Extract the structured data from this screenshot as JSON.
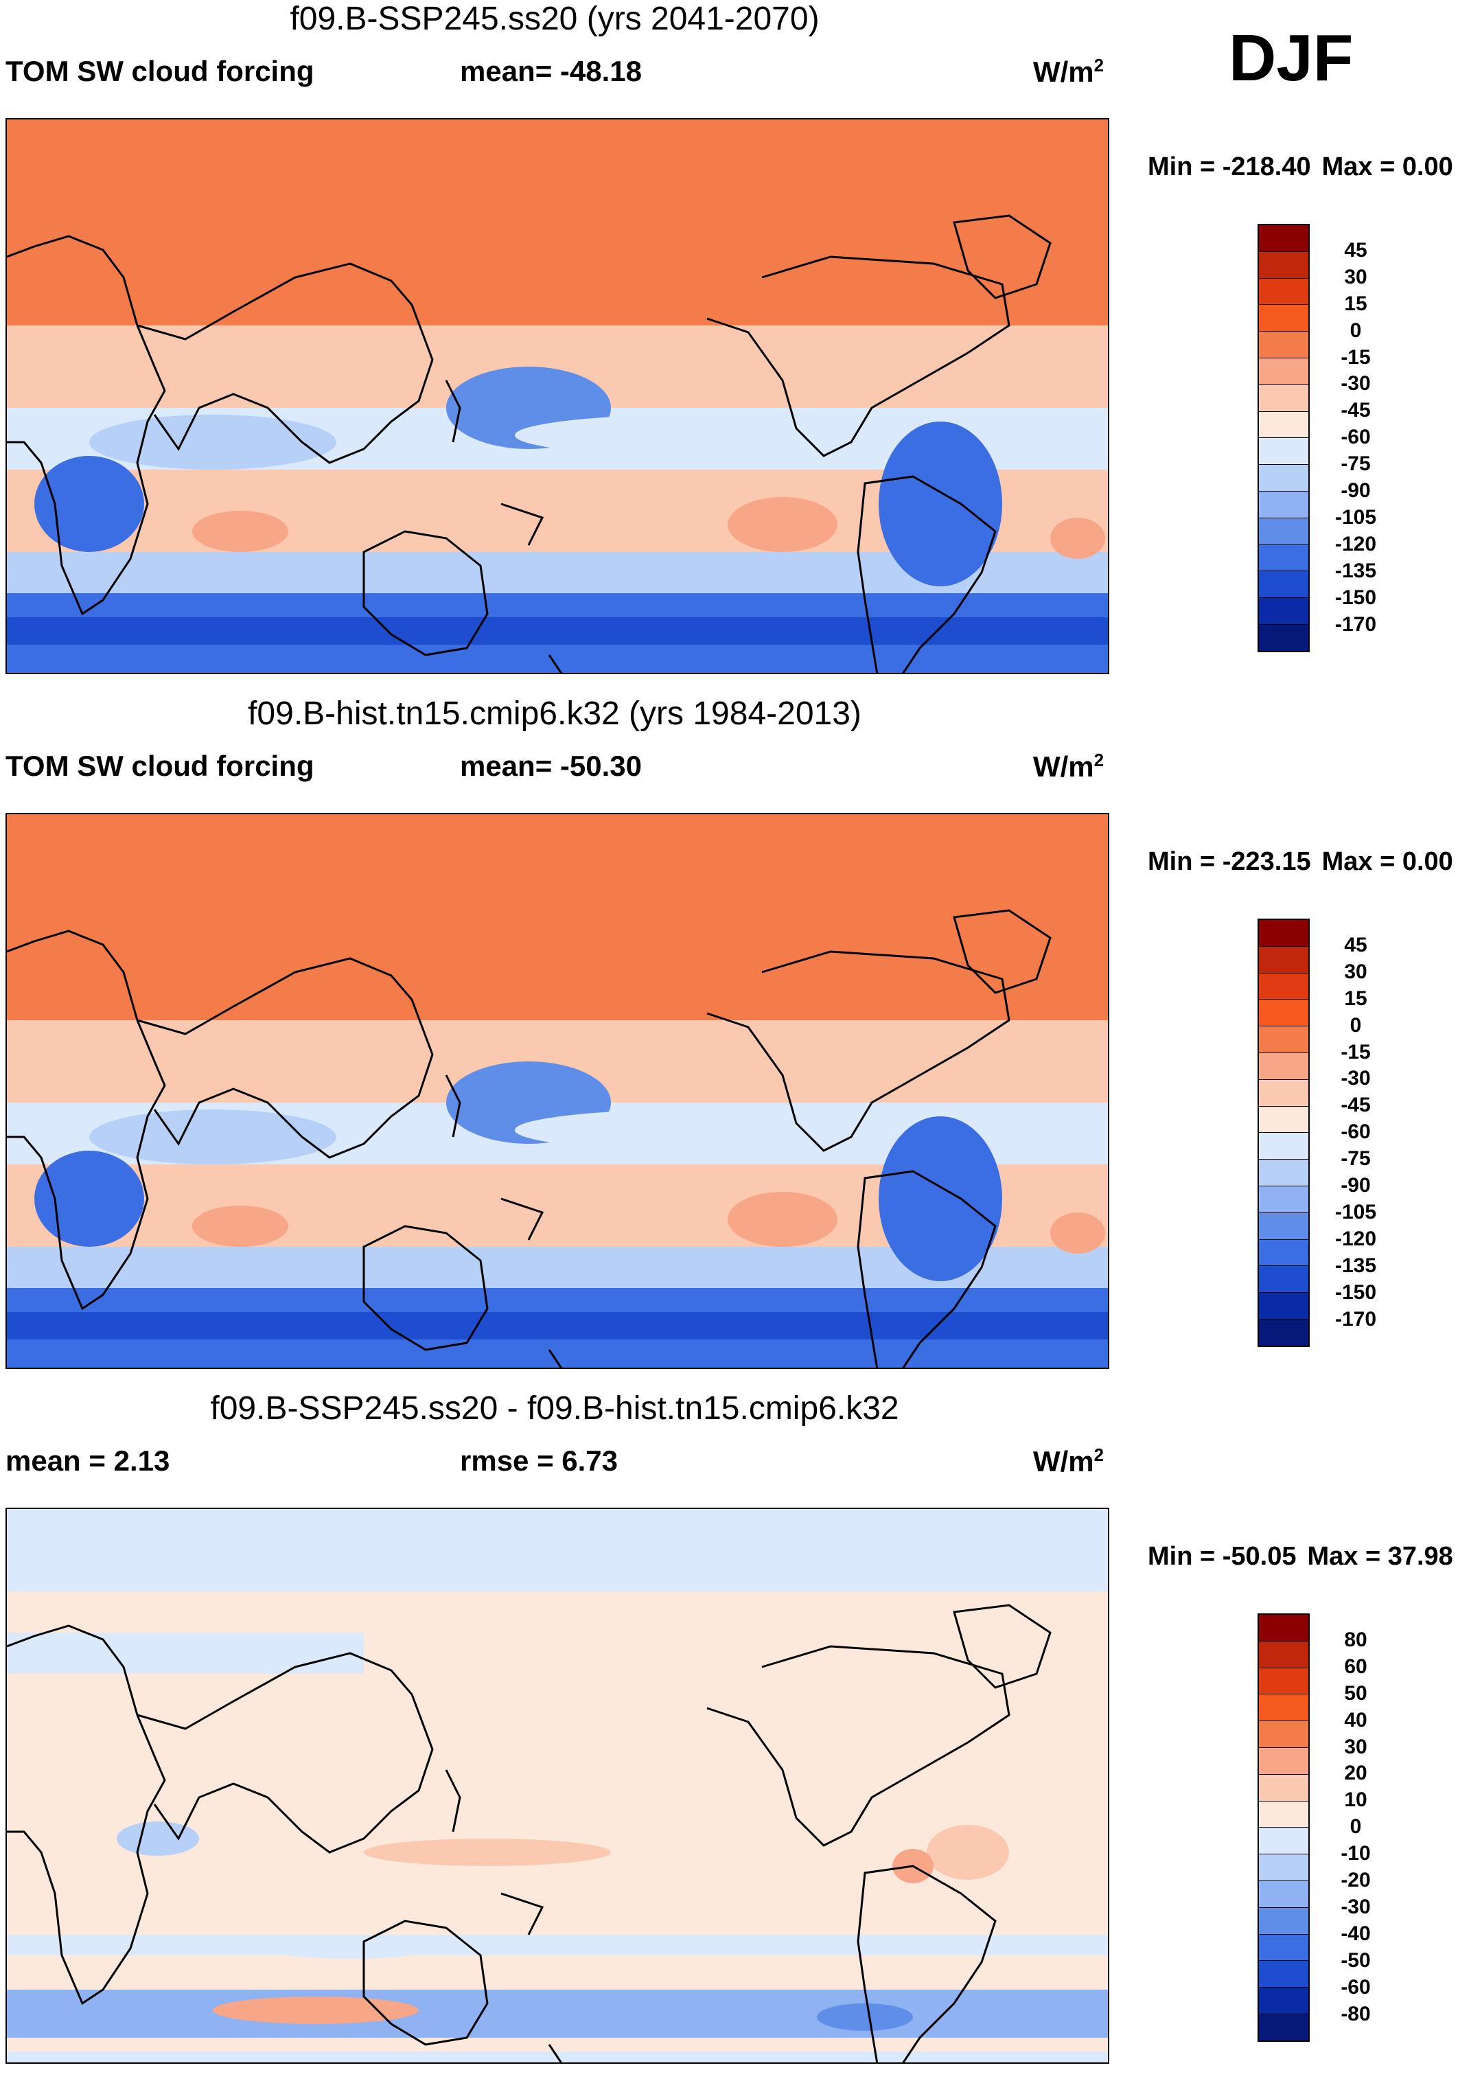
{
  "season": "DJF",
  "panels": [
    {
      "title": "f09.B-SSP245.ss20 (yrs 2041-2070)",
      "left_label": "TOM SW cloud forcing",
      "mid_label": "mean= -48.18",
      "units": "W/m",
      "units_sup": "2",
      "min_text": "Min = -218.40",
      "max_text": "Max =   0.00",
      "levels": [
        "45",
        "30",
        "15",
        "0",
        "-15",
        "-30",
        "-45",
        "-60",
        "-75",
        "-90",
        "-105",
        "-120",
        "-135",
        "-150",
        "-170"
      ],
      "colors": [
        "#8b0000",
        "#c1270b",
        "#e03c12",
        "#f75a1e",
        "#f47c4a",
        "#f8a688",
        "#fbc9b0",
        "#fde9dc",
        "#dbe9fc",
        "#b6d0f8",
        "#8eb2f2",
        "#5f8ee8",
        "#3a6ee2",
        "#1f4dd0",
        "#0a2ba8",
        "#061978"
      ],
      "map_style": "climatology"
    },
    {
      "title": "f09.B-hist.tn15.cmip6.k32 (yrs 1984-2013)",
      "left_label": "TOM SW cloud forcing",
      "mid_label": "mean= -50.30",
      "units": "W/m",
      "units_sup": "2",
      "min_text": "Min = -223.15",
      "max_text": "Max =   0.00",
      "levels": [
        "45",
        "30",
        "15",
        "0",
        "-15",
        "-30",
        "-45",
        "-60",
        "-75",
        "-90",
        "-105",
        "-120",
        "-135",
        "-150",
        "-170"
      ],
      "colors": [
        "#8b0000",
        "#c1270b",
        "#e03c12",
        "#f75a1e",
        "#f47c4a",
        "#f8a688",
        "#fbc9b0",
        "#fde9dc",
        "#dbe9fc",
        "#b6d0f8",
        "#8eb2f2",
        "#5f8ee8",
        "#3a6ee2",
        "#1f4dd0",
        "#0a2ba8",
        "#061978"
      ],
      "map_style": "climatology"
    },
    {
      "title": "f09.B-SSP245.ss20 - f09.B-hist.tn15.cmip6.k32",
      "left_label": "mean =   2.13",
      "mid_label": "rmse =   6.73",
      "units": "W/m",
      "units_sup": "2",
      "min_text": "Min = -50.05",
      "max_text": "Max =  37.98",
      "levels": [
        "80",
        "60",
        "50",
        "40",
        "30",
        "20",
        "10",
        "0",
        "-10",
        "-20",
        "-30",
        "-40",
        "-50",
        "-60",
        "-80"
      ],
      "colors": [
        "#8b0000",
        "#c1270b",
        "#e03c12",
        "#f75a1e",
        "#f47c4a",
        "#f8a688",
        "#fbc9b0",
        "#fde9dc",
        "#dbe9fc",
        "#b6d0f8",
        "#8eb2f2",
        "#5f8ee8",
        "#3a6ee2",
        "#1f4dd0",
        "#0a2ba8",
        "#061978"
      ],
      "map_style": "difference"
    }
  ]
}
